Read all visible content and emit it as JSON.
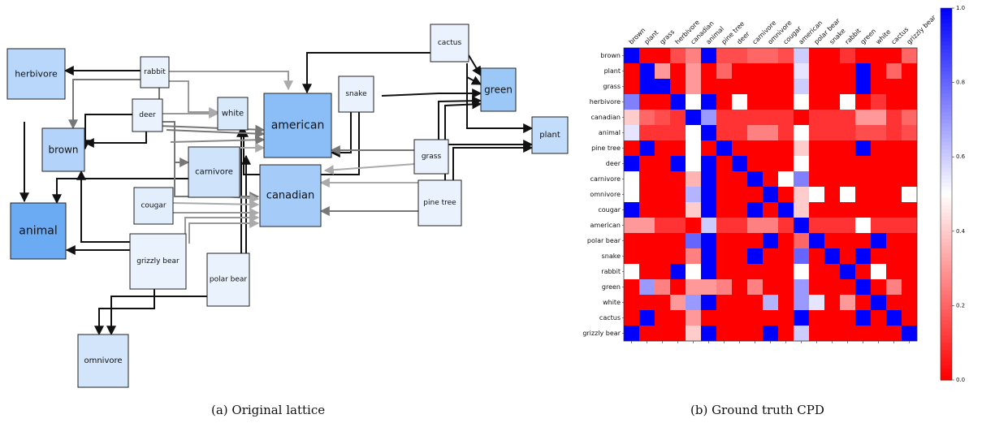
{
  "captions": {
    "left": "(a) Original lattice",
    "right": "(b) Ground truth CPD"
  },
  "lattice": {
    "nodes": [
      {
        "id": "herbivore",
        "label": "herbivore"
      },
      {
        "id": "rabbit",
        "label": "rabbit"
      },
      {
        "id": "deer",
        "label": "deer"
      },
      {
        "id": "white",
        "label": "white"
      },
      {
        "id": "american",
        "label": "american"
      },
      {
        "id": "snake",
        "label": "snake"
      },
      {
        "id": "cactus",
        "label": "cactus"
      },
      {
        "id": "green",
        "label": "green"
      },
      {
        "id": "plant",
        "label": "plant"
      },
      {
        "id": "brown",
        "label": "brown"
      },
      {
        "id": "carnivore",
        "label": "carnivore"
      },
      {
        "id": "grass",
        "label": "grass"
      },
      {
        "id": "canadian",
        "label": "canadian"
      },
      {
        "id": "cougar",
        "label": "cougar"
      },
      {
        "id": "pine-tree",
        "label": "pine tree"
      },
      {
        "id": "animal",
        "label": "animal"
      },
      {
        "id": "grizzly-bear",
        "label": "grizzly bear"
      },
      {
        "id": "polar-bear",
        "label": "polar bear"
      },
      {
        "id": "omnivore",
        "label": "omnivore"
      }
    ]
  },
  "chart_data": {
    "type": "heatmap",
    "rows": [
      "brown",
      "plant",
      "grass",
      "herbivore",
      "canadian",
      "animal",
      "pine tree",
      "deer",
      "carnivore",
      "omnivore",
      "cougar",
      "american",
      "polar bear",
      "snake",
      "rabbit",
      "green",
      "white",
      "cactus",
      "grizzly bear"
    ],
    "columns": [
      "brown",
      "plant",
      "grass",
      "herbivore",
      "canadian",
      "animal",
      "pine tree",
      "deer",
      "carnivore",
      "omnivore",
      "cougar",
      "american",
      "polar bear",
      "snake",
      "rabbit",
      "green",
      "white",
      "cactus",
      "grizzly bear"
    ],
    "values": [
      [
        1,
        0,
        0,
        0.15,
        0.25,
        1,
        0.15,
        0.15,
        0.2,
        0.2,
        0.15,
        0.6,
        0,
        0,
        0.1,
        0,
        0,
        0,
        0.2
      ],
      [
        0,
        1,
        0.3,
        0,
        0.3,
        0,
        0.2,
        0,
        0,
        0,
        0,
        0.55,
        0,
        0,
        0,
        1,
        0,
        0.2,
        0
      ],
      [
        0,
        1,
        1,
        0,
        0.3,
        0,
        0,
        0,
        0,
        0,
        0,
        0.6,
        0,
        0,
        0,
        1,
        0,
        0,
        0
      ],
      [
        0.75,
        0,
        0,
        1,
        0.5,
        1,
        0,
        0.5,
        0,
        0,
        0,
        0.5,
        0,
        0,
        0.5,
        0,
        0.1,
        0,
        0
      ],
      [
        0.4,
        0.2,
        0.15,
        0.1,
        1,
        0.7,
        0.1,
        0.1,
        0.1,
        0.1,
        0.1,
        0,
        0.1,
        0.1,
        0.1,
        0.3,
        0.3,
        0.1,
        0.2
      ],
      [
        0.55,
        0.1,
        0.1,
        0.1,
        0.5,
        1,
        0.1,
        0.1,
        0.25,
        0.25,
        0.1,
        0.5,
        0.1,
        0.1,
        0.1,
        0.15,
        0.15,
        0.1,
        0.15
      ],
      [
        0,
        1,
        0,
        0,
        0.5,
        0,
        1,
        0,
        0,
        0,
        0,
        0.4,
        0,
        0,
        0,
        1,
        0,
        0,
        0
      ],
      [
        1,
        0,
        0,
        1,
        0.5,
        1,
        0,
        1,
        0,
        0,
        0,
        0.5,
        0,
        0,
        0,
        0,
        0,
        0,
        0
      ],
      [
        0.5,
        0,
        0,
        0,
        0.35,
        1,
        0,
        0,
        1,
        0,
        0.5,
        0.75,
        0,
        0,
        0,
        0,
        0,
        0,
        0
      ],
      [
        0.5,
        0,
        0,
        0,
        0.65,
        1,
        0,
        0,
        0,
        1,
        0,
        0.4,
        0.5,
        0,
        0.5,
        0,
        0,
        0,
        0.5
      ],
      [
        1,
        0,
        0,
        0,
        0.4,
        1,
        0,
        0,
        1,
        0,
        1,
        0.4,
        0,
        0,
        0,
        0,
        0,
        0,
        0
      ],
      [
        0.3,
        0.3,
        0.1,
        0.1,
        0,
        0.6,
        0.1,
        0.1,
        0.25,
        0.25,
        0.1,
        1,
        0.1,
        0.1,
        0.1,
        0.5,
        0.1,
        0.1,
        0.1
      ],
      [
        0,
        0,
        0,
        0,
        0.8,
        1,
        0,
        0,
        0,
        1,
        0,
        0.2,
        1,
        0,
        0,
        0,
        1,
        0,
        0
      ],
      [
        0,
        0,
        0,
        0,
        0.25,
        1,
        0,
        0,
        1,
        0,
        0,
        0.8,
        0,
        1,
        0,
        1,
        0,
        0,
        0
      ],
      [
        0.5,
        0,
        0,
        1,
        0.5,
        1,
        0,
        0,
        0,
        0,
        0,
        0.5,
        0,
        0,
        1,
        0,
        0.5,
        0,
        0
      ],
      [
        0,
        0.7,
        0.25,
        0,
        0.3,
        0.3,
        0.25,
        0,
        0.25,
        0,
        0,
        0.7,
        0,
        0,
        0,
        1,
        0,
        0.25,
        0
      ],
      [
        0,
        0,
        0,
        0.3,
        0.7,
        1,
        0,
        0,
        0,
        0.65,
        0,
        0.7,
        0.55,
        0,
        0.3,
        0,
        1,
        0,
        0
      ],
      [
        0,
        1,
        0,
        0,
        0.3,
        0,
        0,
        0,
        0,
        0,
        0,
        1,
        0,
        0,
        0,
        1,
        0,
        1,
        0
      ],
      [
        1,
        0,
        0,
        0,
        0.4,
        1,
        0,
        0,
        0,
        1,
        0,
        0.6,
        0,
        0,
        0,
        0,
        0,
        0,
        1
      ]
    ],
    "colorbar": {
      "min": 0.0,
      "max": 1.0,
      "ticks": [
        "0.0",
        "0.2",
        "0.4",
        "0.6",
        "0.8",
        "1.0"
      ],
      "colormap": "bwr"
    }
  }
}
